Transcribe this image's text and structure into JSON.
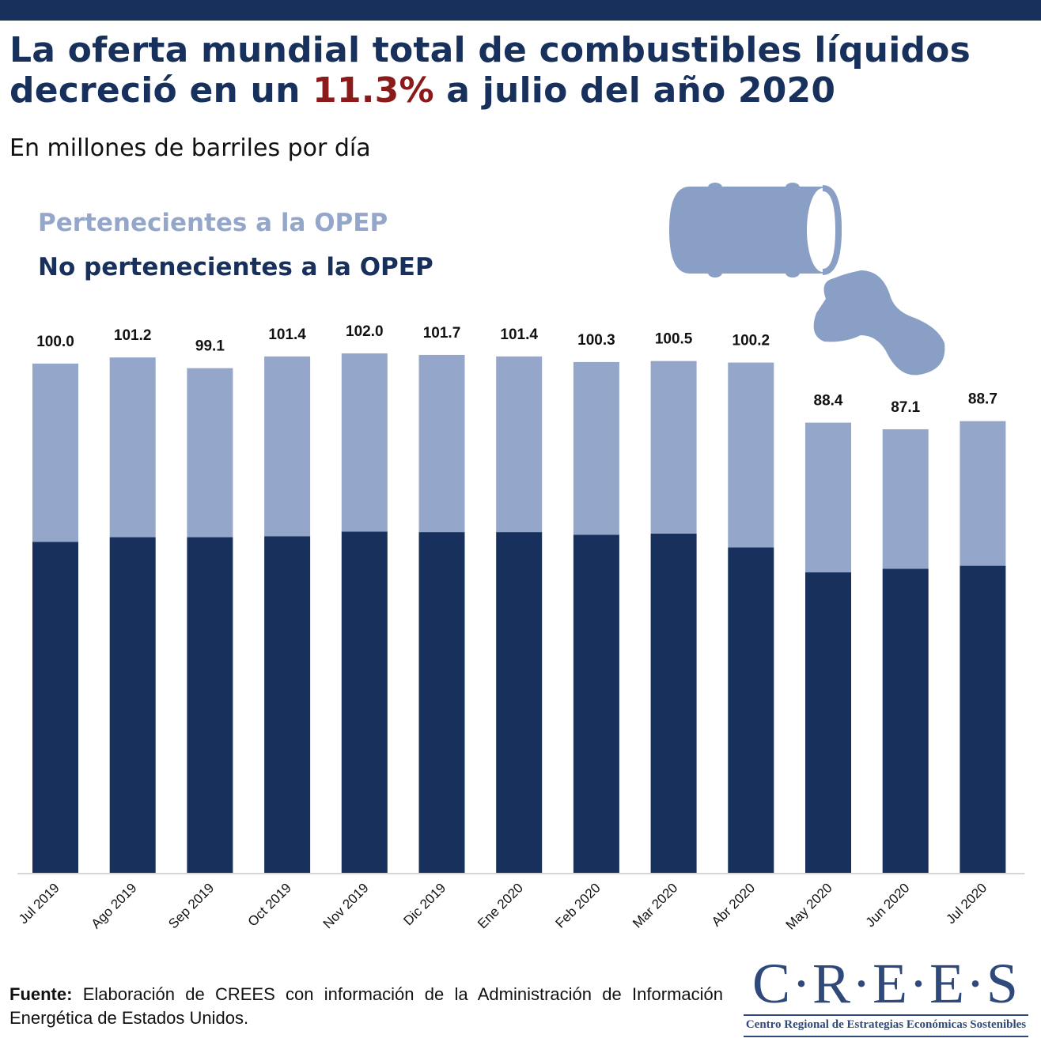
{
  "title": {
    "line1": "La oferta mundial total de combustibles líquidos",
    "line2_before": "decreció en un ",
    "highlight": "11.3%",
    "line2_after": " a julio del año 2020"
  },
  "subtitle": "En millones de barriles por día",
  "legend": {
    "opep": "Pertenecientes a la OPEP",
    "non_opep": "No pertenecientes a la OPEP"
  },
  "colors": {
    "navy": "#17305c",
    "light": "#94a7cb",
    "highlight": "#8b1a1a",
    "icon": "#8a9fc6"
  },
  "chart_data": {
    "type": "bar",
    "stacked": true,
    "categories": [
      "Jul 2019",
      "Ago 2019",
      "Sep 2019",
      "Oct 2019",
      "Nov 2019",
      "Dic 2019",
      "Ene 2020",
      "Feb 2020",
      "Mar 2020",
      "Abr 2020",
      "May 2020",
      "Jun 2020",
      "Jul 2020"
    ],
    "series": [
      {
        "name": "No pertenecientes a la OPEP",
        "values": [
          65.0,
          65.9,
          65.9,
          66.1,
          67.0,
          66.9,
          66.9,
          66.4,
          66.6,
          63.9,
          59.0,
          59.7,
          60.3
        ]
      },
      {
        "name": "Pertenecientes a la OPEP",
        "values": [
          35.0,
          35.3,
          33.2,
          35.3,
          35.0,
          34.8,
          34.5,
          33.9,
          33.9,
          36.3,
          29.4,
          27.4,
          28.4
        ]
      }
    ],
    "totals": [
      100.0,
      101.2,
      99.1,
      101.4,
      102.0,
      101.7,
      101.4,
      100.3,
      100.5,
      100.2,
      88.4,
      87.1,
      88.7
    ],
    "total_labels": [
      "100.0",
      "101.2",
      "99.1",
      "101.4",
      "102.0",
      "101.7",
      "101.4",
      "100.3",
      "100.5",
      "100.2",
      "88.4",
      "87.1",
      "88.7"
    ],
    "ylim": [
      0,
      102.0
    ],
    "xlabel": "",
    "ylabel": "",
    "grid": false
  },
  "source": {
    "label": "Fuente:",
    "text": " Elaboración de CREES con información de la Administración de Información Energética de Estados Unidos."
  },
  "logo": {
    "wordmark": "C·R·E·E·S",
    "tagline": "Centro Regional de Estrategias Económicas Sostenibles"
  },
  "icons": {
    "barrel": "oil-barrel-icon",
    "spill": "oil-spill-icon"
  }
}
